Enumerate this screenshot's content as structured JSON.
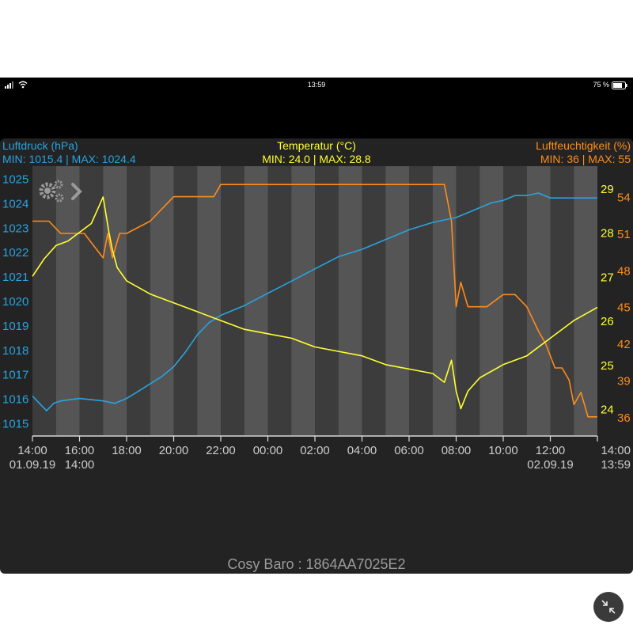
{
  "status_bar": {
    "time": "13:59",
    "battery": "75 %"
  },
  "header": {
    "left_title": "Luftdruck (hPa)",
    "left_minmax": "MIN: 1015.4 | MAX: 1024.4",
    "center_title": "Temperatur (°C)",
    "center_minmax": "MIN: 24.0 | MAX: 28.8",
    "right_title": "Luftfeuchtigkeit (%)",
    "right_minmax": "MIN: 36 | MAX: 55"
  },
  "footer": {
    "device_label": "Cosy Baro : 1864AA7025E2"
  },
  "colors": {
    "pressure": "#29a3e0",
    "temperature": "#ffff33",
    "humidity": "#ff8c1a",
    "background": "#232323",
    "band_light": "#555555",
    "band_dark": "#3c3c3c"
  },
  "icons": {
    "settings": "gears-icon",
    "next": "chevron-right-icon",
    "collapse": "collapse-arrows-icon"
  },
  "chart_data": {
    "type": "line",
    "x_unit": "hours since 01.09.19 14:00",
    "xlim": [
      0,
      24
    ],
    "x_ticks": [
      {
        "x": 0,
        "label": "14:00",
        "sub": "01.09.19"
      },
      {
        "x": 2,
        "label": "16:00",
        "sub": "14:00"
      },
      {
        "x": 4,
        "label": "18:00",
        "sub": ""
      },
      {
        "x": 6,
        "label": "20:00",
        "sub": ""
      },
      {
        "x": 8,
        "label": "22:00",
        "sub": ""
      },
      {
        "x": 10,
        "label": "00:00",
        "sub": ""
      },
      {
        "x": 12,
        "label": "02:00",
        "sub": ""
      },
      {
        "x": 14,
        "label": "04:00",
        "sub": ""
      },
      {
        "x": 16,
        "label": "06:00",
        "sub": ""
      },
      {
        "x": 18,
        "label": "08:00",
        "sub": ""
      },
      {
        "x": 20,
        "label": "10:00",
        "sub": ""
      },
      {
        "x": 22,
        "label": "12:00",
        "sub": "02.09.19"
      },
      {
        "x": 24,
        "label": "14:00",
        "sub": "13:59"
      }
    ],
    "grid": "alternating vertical bands",
    "series": [
      {
        "name": "Luftdruck (hPa)",
        "axis": "left",
        "color": "#29a3e0",
        "ylim": [
          1014.5,
          1025.5
        ],
        "ticks": [
          1015,
          1016,
          1017,
          1018,
          1019,
          1020,
          1021,
          1022,
          1023,
          1024,
          1025
        ],
        "x": [
          0,
          0.3,
          0.6,
          0.9,
          1.2,
          2,
          3,
          3.5,
          4,
          4.5,
          5,
          5.5,
          6,
          6.5,
          7,
          7.5,
          8,
          8.5,
          9,
          10,
          11,
          12,
          13,
          14,
          15,
          16,
          17,
          18,
          18.5,
          19,
          19.5,
          20,
          20.5,
          21,
          21.5,
          22,
          23,
          24
        ],
        "y": [
          1016.1,
          1015.8,
          1015.5,
          1015.8,
          1015.9,
          1016.0,
          1015.9,
          1015.8,
          1016.0,
          1016.3,
          1016.6,
          1016.9,
          1017.3,
          1017.9,
          1018.6,
          1019.1,
          1019.4,
          1019.6,
          1019.8,
          1020.3,
          1020.8,
          1021.3,
          1021.8,
          1022.1,
          1022.5,
          1022.9,
          1023.2,
          1023.4,
          1023.6,
          1023.8,
          1024.0,
          1024.1,
          1024.3,
          1024.3,
          1024.4,
          1024.2,
          1024.2,
          1024.2
        ]
      },
      {
        "name": "Temperatur (°C)",
        "axis": "right-inner",
        "color": "#ffff33",
        "ylim": [
          23.4,
          29.5
        ],
        "ticks": [
          24,
          25,
          26,
          27,
          28,
          29
        ],
        "x": [
          0,
          0.5,
          1,
          1.5,
          2,
          2.5,
          3,
          3.25,
          3.4,
          3.6,
          4,
          5,
          6,
          7,
          8,
          9,
          10,
          11,
          12,
          13,
          14,
          15,
          16,
          17,
          17.5,
          17.8,
          18,
          18.2,
          18.5,
          19,
          20,
          21,
          22,
          23,
          24
        ],
        "y": [
          27.0,
          27.4,
          27.7,
          27.8,
          28.0,
          28.2,
          28.8,
          28.0,
          27.6,
          27.2,
          26.9,
          26.6,
          26.4,
          26.2,
          26.0,
          25.8,
          25.7,
          25.6,
          25.4,
          25.3,
          25.2,
          25.0,
          24.9,
          24.8,
          24.6,
          25.1,
          24.4,
          24.0,
          24.4,
          24.7,
          25.0,
          25.2,
          25.6,
          26.0,
          26.3
        ]
      },
      {
        "name": "Luftfeuchtigkeit (%)",
        "axis": "right-outer",
        "color": "#ff8c1a",
        "ylim": [
          34.5,
          56.5
        ],
        "ticks": [
          36,
          39,
          42,
          45,
          48,
          51,
          54
        ],
        "x": [
          0,
          0.7,
          1.2,
          2.2,
          3,
          3.2,
          3.4,
          3.7,
          4,
          5,
          6,
          7,
          7.7,
          8,
          17.5,
          17.8,
          18,
          18.2,
          18.5,
          18.8,
          19,
          19.3,
          20,
          20.5,
          21,
          21.5,
          21.8,
          22.2,
          22.5,
          22.8,
          23,
          23.3,
          23.6,
          24
        ],
        "y": [
          52,
          52,
          51,
          51,
          49,
          51,
          49,
          51,
          51,
          52,
          54,
          54,
          54,
          55,
          55,
          52,
          45,
          47,
          45,
          45,
          45,
          45,
          46,
          46,
          45,
          43,
          42,
          40,
          40,
          39,
          37,
          38,
          36,
          36
        ]
      }
    ]
  }
}
